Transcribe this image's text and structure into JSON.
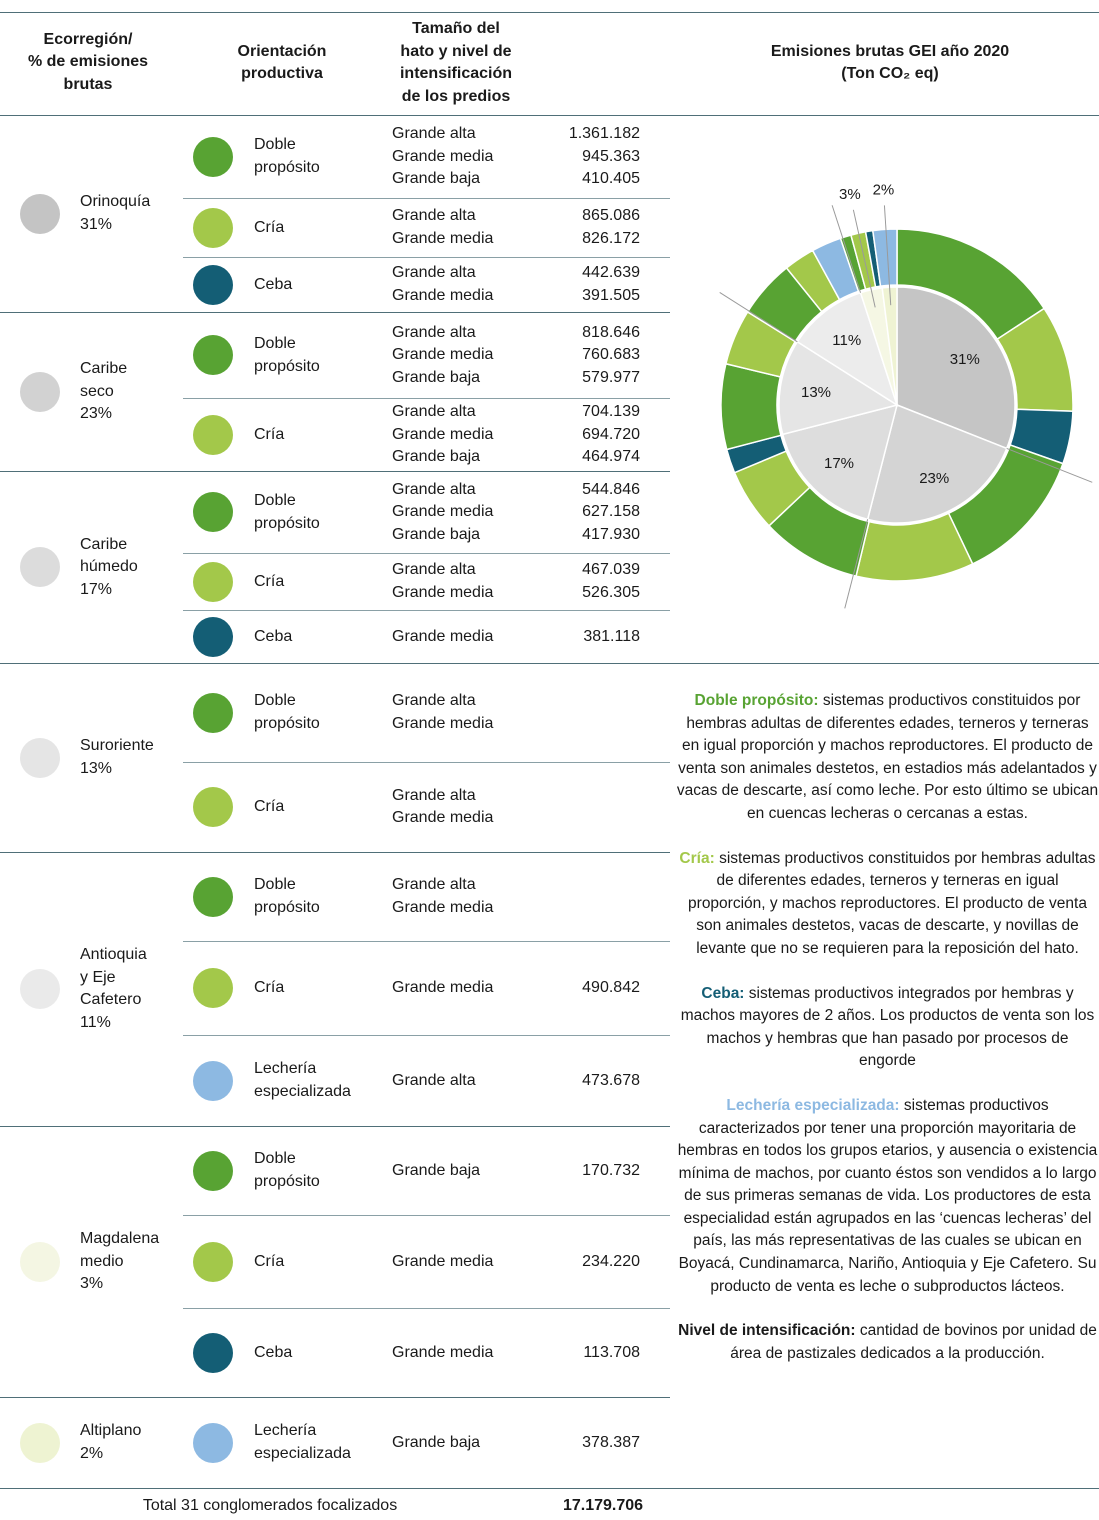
{
  "header": {
    "region": [
      "Ecorregión/",
      "% de emisiones",
      "brutas"
    ],
    "orientation": [
      "Orientación",
      "productiva"
    ],
    "size": [
      "Tamaño del",
      "hato y nivel de",
      "intensificación",
      "de los predios"
    ]
  },
  "regions": [
    {
      "name": [
        "Orinoquía"
      ],
      "share": "31%",
      "color": "#c4c4c4",
      "orientations": [
        {
          "name": [
            "Doble",
            "propósito"
          ],
          "color": "#58a333",
          "rows": [
            {
              "size": "Grande alta",
              "value": "1.361.182"
            },
            {
              "size": "Grande media",
              "value": "945.363"
            },
            {
              "size": "Grande baja",
              "value": "410.405"
            }
          ]
        },
        {
          "name": [
            "Cría"
          ],
          "color": "#a3c84a",
          "rows": [
            {
              "size": "Grande alta",
              "value": "865.086"
            },
            {
              "size": "Grande media",
              "value": "826.172"
            }
          ]
        },
        {
          "name": [
            "Ceba"
          ],
          "color": "#145e75",
          "rows": [
            {
              "size": "Grande alta",
              "value": "442.639"
            },
            {
              "size": "Grande media",
              "value": "391.505"
            }
          ]
        }
      ]
    },
    {
      "name": [
        "Caribe",
        "seco"
      ],
      "share": "23%",
      "color": "#d2d2d2",
      "orientations": [
        {
          "name": [
            "Doble",
            "propósito"
          ],
          "color": "#58a333",
          "rows": [
            {
              "size": "Grande alta",
              "value": "818.646"
            },
            {
              "size": "Grande media",
              "value": "760.683"
            },
            {
              "size": "Grande baja",
              "value": "579.977"
            }
          ]
        },
        {
          "name": [
            "Cría"
          ],
          "color": "#a3c84a",
          "rows": [
            {
              "size": "Grande alta",
              "value": "704.139"
            },
            {
              "size": "Grande media",
              "value": "694.720"
            },
            {
              "size": "Grande baja",
              "value": "464.974"
            }
          ]
        }
      ]
    },
    {
      "name": [
        "Caribe",
        "húmedo"
      ],
      "share": "17%",
      "color": "#dcdcdc",
      "orientations": [
        {
          "name": [
            "Doble",
            "propósito"
          ],
          "color": "#58a333",
          "rows": [
            {
              "size": "Grande alta",
              "value": "544.846"
            },
            {
              "size": "Grande media",
              "value": "627.158"
            },
            {
              "size": "Grande baja",
              "value": "417.930"
            }
          ]
        },
        {
          "name": [
            "Cría"
          ],
          "color": "#a3c84a",
          "rows": [
            {
              "size": "Grande alta",
              "value": "467.039"
            },
            {
              "size": "Grande media",
              "value": "526.305"
            }
          ]
        },
        {
          "name": [
            "Ceba"
          ],
          "color": "#145e75",
          "rows": [
            {
              "size": "Grande media",
              "value": "381.118"
            }
          ]
        }
      ]
    },
    {
      "name": [
        "Suroriente"
      ],
      "share": "13%",
      "color": "#e5e5e5",
      "orientations": [
        {
          "name": [
            "Doble",
            "propósito"
          ],
          "color": "#58a333",
          "rows": [
            {
              "size": "Grande alta"
            },
            {
              "size": "Grande media"
            }
          ]
        },
        {
          "name": [
            "Cría"
          ],
          "color": "#a3c84a",
          "rows": [
            {
              "size": "Grande alta"
            },
            {
              "size": "Grande media"
            }
          ]
        }
      ]
    },
    {
      "name": [
        "Antioquia",
        "y Eje",
        "Cafetero"
      ],
      "share": "11%",
      "color": "#eaeaea",
      "orientations": [
        {
          "name": [
            "Doble",
            "propósito"
          ],
          "color": "#58a333",
          "rows": [
            {
              "size": "Grande alta"
            },
            {
              "size": "Grande media"
            }
          ]
        },
        {
          "name": [
            "Cría"
          ],
          "color": "#a3c84a",
          "rows": [
            {
              "size": "Grande media",
              "value": "490.842"
            }
          ]
        },
        {
          "name": [
            "Lechería",
            "especializada"
          ],
          "color": "#8db9e2",
          "rows": [
            {
              "size": "Grande alta",
              "value": "473.678"
            }
          ]
        }
      ]
    },
    {
      "name": [
        "Magdalena",
        "medio"
      ],
      "share": "3%",
      "color": "#f4f6e3",
      "orientations": [
        {
          "name": [
            "Doble",
            "propósito"
          ],
          "color": "#58a333",
          "rows": [
            {
              "size": "Grande baja",
              "value": "170.732"
            }
          ]
        },
        {
          "name": [
            "Cría"
          ],
          "color": "#a3c84a",
          "rows": [
            {
              "size": "Grande media",
              "value": "234.220"
            }
          ]
        },
        {
          "name": [
            "Ceba"
          ],
          "color": "#145e75",
          "rows": [
            {
              "size": "Grande media",
              "value": "113.708"
            }
          ]
        }
      ]
    },
    {
      "name": [
        "Altiplano"
      ],
      "share": "2%",
      "color": "#eef3d2",
      "orientations": [
        {
          "name": [
            "Lechería",
            "especializada"
          ],
          "color": "#8db9e2",
          "rows": [
            {
              "size": "Grande baja",
              "value": "378.387"
            }
          ]
        }
      ]
    }
  ],
  "total": {
    "label": "Total 31 conglomerados focalizados",
    "value": "17.179.706"
  },
  "chart_data": {
    "type": "donut",
    "title": "Emisiones brutas GEI año 2020",
    "subtitle": "(Ton CO₂ eq)",
    "inner": {
      "values": [
        31,
        23,
        17,
        13,
        11,
        3,
        2
      ],
      "value_labels": [
        "31%",
        "23%",
        "17%",
        "13%",
        "11%",
        "3%",
        "2%"
      ],
      "colors": [
        "#c5c5c5",
        "#d4d4d4",
        "#dddddd",
        "#e5e5e5",
        "#ececec",
        "#f5f7e4",
        "#eff3d3"
      ]
    },
    "outer": {
      "values": [
        2716950,
        1691258,
        834144,
        2159306,
        1863833,
        1589934,
        993344,
        381118,
        1350000,
        880000,
        920000,
        490842,
        473678,
        170732,
        234220,
        113708,
        378387
      ],
      "colors": [
        "#58a333",
        "#a3c84a",
        "#145e75",
        "#58a333",
        "#a3c84a",
        "#58a333",
        "#a3c84a",
        "#145e75",
        "#58a333",
        "#a3c84a",
        "#58a333",
        "#a3c84a",
        "#8db9e2",
        "#58a333",
        "#a3c84a",
        "#145e75",
        "#8db9e2"
      ]
    }
  },
  "definitions": [
    {
      "term": "Doble propósito:",
      "color": "#58a333",
      "text": "sistemas productivos constituidos por hembras adultas de diferentes edades, terneros y terneras en igual proporción y machos reproductores. El producto de venta son animales destetos, en estadios más adelantados y vacas de descarte, así como leche. Por esto último se ubican en cuencas lecheras o cercanas a estas."
    },
    {
      "term": "Cría:",
      "color": "#a3c84a",
      "text": "sistemas productivos constituidos por hembras adultas de diferentes edades, terneros y terneras en igual proporción, y machos reproductores. El producto de venta son animales destetos, vacas de descarte, y novillas de levante que no se requieren para la reposición del hato."
    },
    {
      "term": "Ceba:",
      "color": "#145e75",
      "text": "sistemas productivos integrados por hembras y machos mayores de 2 años. Los productos de venta son los machos y hembras que han pasado por procesos de engorde"
    },
    {
      "term": "Lechería especializada:",
      "color": "#8db9e2",
      "text": "sistemas productivos caracterizados por tener una proporción mayoritaria de hembras en todos los grupos etarios, y ausencia o existencia mínima de machos, por cuanto éstos son vendidos a lo largo de sus primeras semanas de vida. Los productores de esta especialidad están agrupados en las ‘cuencas lecheras’ del país, las más representativas de las cuales se ubican en Boyacá, Cundinamarca, Nariño, Antioquia y Eje Cafetero. Su producto de venta es leche o subproductos lácteos."
    },
    {
      "term": "Nivel de intensificación:",
      "color": "#1a1a1a",
      "text": "cantidad de bovinos por unidad de área de pastizales dedicados a la producción."
    }
  ]
}
